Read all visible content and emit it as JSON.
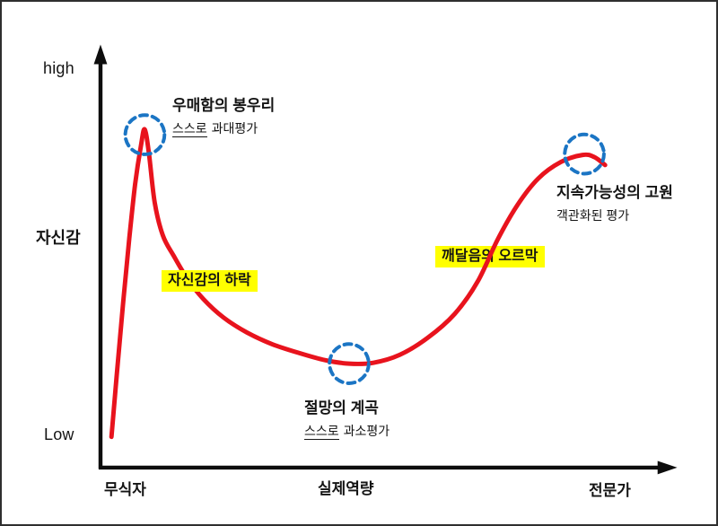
{
  "colors": {
    "curve": "#e8131d",
    "marker_circle": "#1b75c4",
    "highlight": "#ffff00",
    "axis": "#0d0d0d",
    "text": "#141414"
  },
  "axes": {
    "y_high_label": "high",
    "y_axis_title": "자신감",
    "y_low_label": "Low",
    "x_tick_left": "무식자",
    "x_tick_mid": "실제역량",
    "x_tick_right": "전문가"
  },
  "annotations": {
    "peak": {
      "title": "우매함의 봉우리",
      "sub_underline": "스스로",
      "sub_rest": "과대평가"
    },
    "decline": {
      "label": "자신감의 하락"
    },
    "valley": {
      "title": "절망의 계곡",
      "sub_underline": "스스로",
      "sub_rest": "과소평가"
    },
    "slope": {
      "label": "깨달음의 오르막"
    },
    "plateau": {
      "title": "지속가능성의 고원",
      "sub": "객관화된 평가"
    }
  },
  "chart_data": {
    "type": "line",
    "title": "",
    "xlabel": "",
    "ylabel": "자신감",
    "x_tick_labels": [
      "무식자",
      "실제역량",
      "전문가"
    ],
    "y_range_labels": [
      "Low",
      "high"
    ],
    "grid": false,
    "units": "percent of plot area (x: 0=y-axis, 100=arrow tip; y: 0=Low baseline, 100=high)",
    "series": [
      {
        "name": "자신감",
        "color": "#e8131d",
        "points": [
          [
            1.9,
            7.2
          ],
          [
            2.8,
            21.6
          ],
          [
            3.9,
            38.6
          ],
          [
            5.0,
            54.4
          ],
          [
            6.0,
            67.2
          ],
          [
            7.0,
            76.3
          ],
          [
            7.65,
            80.3
          ],
          [
            8.4,
            74.6
          ],
          [
            9.4,
            62.9
          ],
          [
            10.8,
            55.1
          ],
          [
            12.7,
            50.2
          ],
          [
            15.0,
            44.9
          ],
          [
            17.8,
            40.0
          ],
          [
            21.3,
            35.6
          ],
          [
            25.4,
            32.0
          ],
          [
            29.8,
            29.2
          ],
          [
            34.5,
            27.1
          ],
          [
            39.0,
            25.4
          ],
          [
            43.1,
            24.6
          ],
          [
            47.3,
            24.8
          ],
          [
            51.9,
            26.7
          ],
          [
            56.7,
            30.7
          ],
          [
            61.4,
            36.4
          ],
          [
            65.4,
            44.1
          ],
          [
            68.9,
            54.2
          ],
          [
            72.3,
            62.3
          ],
          [
            75.9,
            68.6
          ],
          [
            79.8,
            72.5
          ],
          [
            83.6,
            74.2
          ],
          [
            85.6,
            73.7
          ],
          [
            87.5,
            71.8
          ]
        ]
      }
    ],
    "markers": [
      {
        "name": "우매함의 봉우리",
        "x": 7.7,
        "y": 79.0
      },
      {
        "name": "절망의 계곡",
        "x": 43.1,
        "y": 24.6
      },
      {
        "name": "지속가능성의 고원",
        "x": 83.9,
        "y": 74.4
      }
    ],
    "annotation_texts": [
      "우매함의 봉우리 / 스스로 과대평가",
      "자신감의 하락",
      "절망의 계곡 / 스스로 과소평가",
      "깨달음의 오르막",
      "지속가능성의 고원 / 객관화된 평가"
    ]
  }
}
